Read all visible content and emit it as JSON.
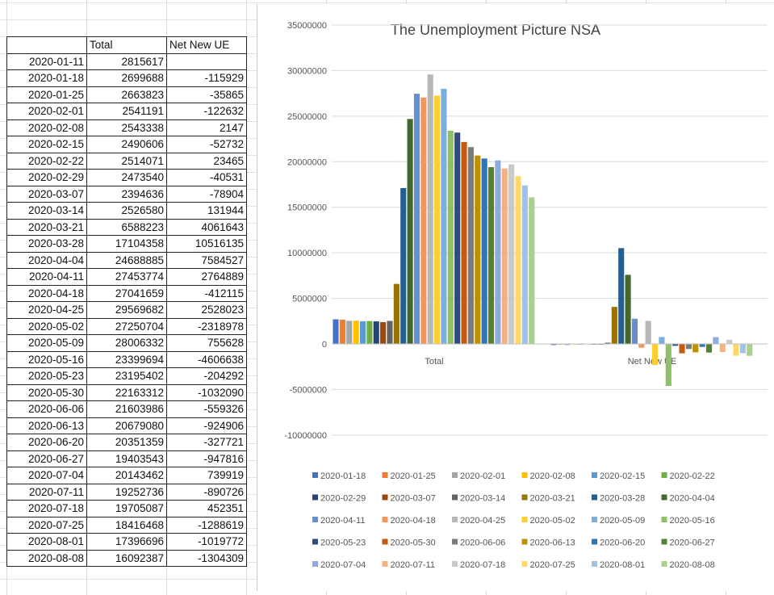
{
  "table": {
    "headers": [
      "",
      "Total",
      "Net New UE"
    ],
    "rows": [
      [
        "2020-01-11",
        "2815617",
        ""
      ],
      [
        "2020-01-18",
        "2699688",
        "-115929"
      ],
      [
        "2020-01-25",
        "2663823",
        "-35865"
      ],
      [
        "2020-02-01",
        "2541191",
        "-122632"
      ],
      [
        "2020-02-08",
        "2543338",
        "2147"
      ],
      [
        "2020-02-15",
        "2490606",
        "-52732"
      ],
      [
        "2020-02-22",
        "2514071",
        "23465"
      ],
      [
        "2020-02-29",
        "2473540",
        "-40531"
      ],
      [
        "2020-03-07",
        "2394636",
        "-78904"
      ],
      [
        "2020-03-14",
        "2526580",
        "131944"
      ],
      [
        "2020-03-21",
        "6588223",
        "4061643"
      ],
      [
        "2020-03-28",
        "17104358",
        "10516135"
      ],
      [
        "2020-04-04",
        "24688885",
        "7584527"
      ],
      [
        "2020-04-11",
        "27453774",
        "2764889"
      ],
      [
        "2020-04-18",
        "27041659",
        "-412115"
      ],
      [
        "2020-04-25",
        "29569682",
        "2528023"
      ],
      [
        "2020-05-02",
        "27250704",
        "-2318978"
      ],
      [
        "2020-05-09",
        "28006332",
        "755628"
      ],
      [
        "2020-05-16",
        "23399694",
        "-4606638"
      ],
      [
        "2020-05-23",
        "23195402",
        "-204292"
      ],
      [
        "2020-05-30",
        "22163312",
        "-1032090"
      ],
      [
        "2020-06-06",
        "21603986",
        "-559326"
      ],
      [
        "2020-06-13",
        "20679080",
        "-924906"
      ],
      [
        "2020-06-20",
        "20351359",
        "-327721"
      ],
      [
        "2020-06-27",
        "19403543",
        "-947816"
      ],
      [
        "2020-07-04",
        "20143462",
        "739919"
      ],
      [
        "2020-07-11",
        "19252736",
        "-890726"
      ],
      [
        "2020-07-18",
        "19705087",
        "452351"
      ],
      [
        "2020-07-25",
        "18416468",
        "-1288619"
      ],
      [
        "2020-08-01",
        "17396696",
        "-1019772"
      ],
      [
        "2020-08-08",
        "16092387",
        "-1304309"
      ]
    ]
  },
  "chart_data": {
    "type": "bar",
    "title": "The Unemployment Picture NSA",
    "categories": [
      "Total",
      "Net New UE"
    ],
    "ylim": [
      -10000000,
      35000000
    ],
    "yticks": [
      "35000000",
      "30000000",
      "25000000",
      "20000000",
      "15000000",
      "10000000",
      "5000000",
      "0",
      "-5000000",
      "-10000000"
    ],
    "grid": true,
    "legend_position": "bottom",
    "series": [
      {
        "name": "2020-01-18",
        "values": [
          2699688,
          -115929
        ],
        "color": "#4472C4"
      },
      {
        "name": "2020-01-25",
        "values": [
          2663823,
          -35865
        ],
        "color": "#ED7D31"
      },
      {
        "name": "2020-02-01",
        "values": [
          2541191,
          -122632
        ],
        "color": "#A5A5A5"
      },
      {
        "name": "2020-02-08",
        "values": [
          2543338,
          2147
        ],
        "color": "#FFC000"
      },
      {
        "name": "2020-02-15",
        "values": [
          2490606,
          -52732
        ],
        "color": "#5B9BD5"
      },
      {
        "name": "2020-02-22",
        "values": [
          2514071,
          23465
        ],
        "color": "#70AD47"
      },
      {
        "name": "2020-02-29",
        "values": [
          2473540,
          -40531
        ],
        "color": "#264478"
      },
      {
        "name": "2020-03-07",
        "values": [
          2394636,
          -78904
        ],
        "color": "#9E480E"
      },
      {
        "name": "2020-03-14",
        "values": [
          2526580,
          131944
        ],
        "color": "#636363"
      },
      {
        "name": "2020-03-21",
        "values": [
          6588223,
          4061643
        ],
        "color": "#997300"
      },
      {
        "name": "2020-03-28",
        "values": [
          17104358,
          10516135
        ],
        "color": "#255E91"
      },
      {
        "name": "2020-04-04",
        "values": [
          24688885,
          7584527
        ],
        "color": "#43682B"
      },
      {
        "name": "2020-04-11",
        "values": [
          27453774,
          2764889
        ],
        "color": "#698ED0"
      },
      {
        "name": "2020-04-18",
        "values": [
          27041659,
          -412115
        ],
        "color": "#F1975A"
      },
      {
        "name": "2020-04-25",
        "values": [
          29569682,
          2528023
        ],
        "color": "#B7B7B7"
      },
      {
        "name": "2020-05-02",
        "values": [
          27250704,
          -2318978
        ],
        "color": "#FFCD33"
      },
      {
        "name": "2020-05-09",
        "values": [
          28006332,
          755628
        ],
        "color": "#7CAFDD"
      },
      {
        "name": "2020-05-16",
        "values": [
          23399694,
          -4606638
        ],
        "color": "#8CC168"
      },
      {
        "name": "2020-05-23",
        "values": [
          23195402,
          -204292
        ],
        "color": "#2F4B7F"
      },
      {
        "name": "2020-05-30",
        "values": [
          22163312,
          -1032090
        ],
        "color": "#C55A11"
      },
      {
        "name": "2020-06-06",
        "values": [
          21603986,
          -559326
        ],
        "color": "#7B7B7B"
      },
      {
        "name": "2020-06-13",
        "values": [
          20679080,
          -924906
        ],
        "color": "#BF9000"
      },
      {
        "name": "2020-06-20",
        "values": [
          20351359,
          -327721
        ],
        "color": "#2E75B6"
      },
      {
        "name": "2020-06-27",
        "values": [
          19403543,
          -947816
        ],
        "color": "#548235"
      },
      {
        "name": "2020-07-04",
        "values": [
          20143462,
          739919
        ],
        "color": "#8FAADC"
      },
      {
        "name": "2020-07-11",
        "values": [
          19252736,
          -890726
        ],
        "color": "#F4B183"
      },
      {
        "name": "2020-07-18",
        "values": [
          19705087,
          452351
        ],
        "color": "#C9C9C9"
      },
      {
        "name": "2020-07-25",
        "values": [
          18416468,
          -1288619
        ],
        "color": "#FFD966"
      },
      {
        "name": "2020-08-01",
        "values": [
          17396696,
          -1019772
        ],
        "color": "#9DC3E6"
      },
      {
        "name": "2020-08-08",
        "values": [
          16092387,
          -1304309
        ],
        "color": "#A9D18E"
      }
    ]
  }
}
